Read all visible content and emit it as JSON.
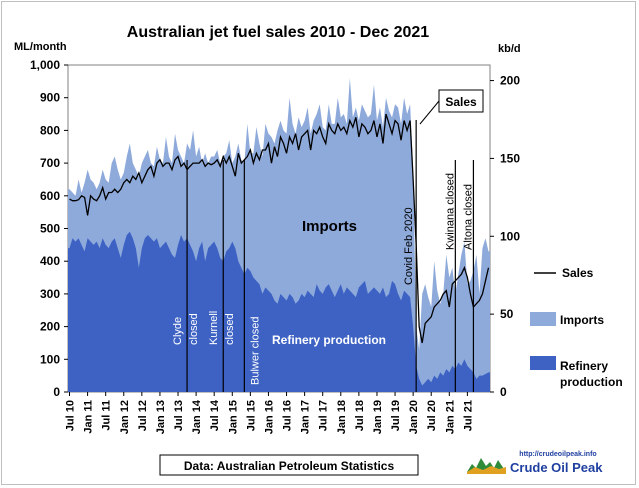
{
  "chart_data": {
    "type": "area",
    "title": "Australian jet fuel sales 2010 - Dec 2021",
    "ylabel_left": "ML/month",
    "ylabel_right": "kb/d",
    "ylim_left": [
      0,
      1000
    ],
    "ylim_right": [
      0,
      210
    ],
    "yticks_left": [
      "0",
      "100",
      "200",
      "300",
      "400",
      "500",
      "600",
      "700",
      "800",
      "900",
      "1,000"
    ],
    "yticks_right": [
      "0",
      "50",
      "100",
      "150",
      "200"
    ],
    "xticks": [
      "Jul 10",
      "Jan 11",
      "Jul 11",
      "Jan 12",
      "Jul 12",
      "Jan 13",
      "Jul 13",
      "Jan 14",
      "Jul 14",
      "Jan 15",
      "Jul 15",
      "Jan 16",
      "Jul 16",
      "Jan 17",
      "Jul 17",
      "Jan 18",
      "Jul 18",
      "Jan 19",
      "Jul 19",
      "Jan 20",
      "Jul 20",
      "Jan 21",
      "Jul 21"
    ],
    "x_start": "2010-07",
    "series": [
      {
        "name": "Sales",
        "type": "line",
        "color": "#000000",
        "values": [
          590,
          585,
          585,
          588,
          600,
          595,
          540,
          600,
          590,
          585,
          600,
          625,
          590,
          610,
          610,
          620,
          610,
          620,
          640,
          650,
          640,
          660,
          650,
          670,
          640,
          660,
          680,
          690,
          660,
          700,
          710,
          690,
          700,
          700,
          680,
          710,
          720,
          690,
          700,
          680,
          690,
          700,
          700,
          700,
          710,
          690,
          700,
          695,
          700,
          710,
          690,
          720,
          700,
          720,
          690,
          660,
          730,
          700,
          710,
          720,
          740,
          700,
          730,
          710,
          740,
          740,
          760,
          700,
          750,
          720,
          780,
          760,
          730,
          780,
          760,
          790,
          740,
          780,
          790,
          800,
          740,
          800,
          790,
          810,
          780,
          760,
          820,
          800,
          790,
          820,
          800,
          810,
          790,
          830,
          810,
          840,
          780,
          820,
          810,
          790,
          800,
          830,
          780,
          820,
          760,
          850,
          820,
          790,
          830,
          820,
          770,
          830,
          800,
          830,
          650,
          450,
          200,
          150,
          210,
          220,
          230,
          260,
          270,
          280,
          300,
          310,
          260,
          330,
          340,
          350,
          360,
          380,
          350,
          300,
          260,
          270,
          280,
          300,
          340,
          380
        ]
      },
      {
        "name": "Imports",
        "type": "area",
        "color": "#8eaadb",
        "values": [
          620,
          610,
          600,
          650,
          610,
          640,
          680,
          650,
          640,
          620,
          640,
          680,
          650,
          640,
          700,
          720,
          680,
          650,
          670,
          720,
          760,
          700,
          680,
          660,
          700,
          720,
          740,
          700,
          690,
          750,
          710,
          700,
          780,
          720,
          700,
          790,
          740,
          720,
          700,
          760,
          740,
          800,
          720,
          750,
          700,
          730,
          700,
          720,
          720,
          740,
          700,
          720,
          730,
          770,
          700,
          720,
          760,
          710,
          700,
          820,
          730,
          730,
          810,
          760,
          720,
          820,
          790,
          780,
          760,
          800,
          830,
          800,
          790,
          900,
          820,
          790,
          840,
          810,
          830,
          870,
          790,
          830,
          850,
          880,
          810,
          800,
          880,
          820,
          820,
          900,
          840,
          850,
          820,
          960,
          840,
          870,
          830,
          880,
          860,
          840,
          850,
          940,
          830,
          870,
          810,
          900,
          860,
          840,
          880,
          870,
          820,
          900,
          850,
          880,
          680,
          200,
          130,
          300,
          330,
          290,
          260,
          400,
          310,
          270,
          300,
          420,
          350,
          380,
          300,
          360,
          420,
          460,
          330,
          340,
          370,
          420,
          300,
          440,
          470,
          430
        ]
      },
      {
        "name": "Refinery production",
        "type": "area",
        "color": "#3d62c4",
        "values": [
          440,
          470,
          460,
          470,
          450,
          430,
          470,
          460,
          450,
          460,
          440,
          470,
          450,
          440,
          460,
          470,
          440,
          410,
          450,
          480,
          490,
          470,
          440,
          380,
          440,
          470,
          480,
          470,
          460,
          470,
          440,
          450,
          460,
          440,
          420,
          410,
          450,
          480,
          460,
          470,
          450,
          430,
          400,
          440,
          460,
          400,
          440,
          450,
          460,
          440,
          410,
          400,
          430,
          440,
          460,
          440,
          400,
          380,
          360,
          380,
          370,
          350,
          340,
          330,
          300,
          320,
          310,
          300,
          280,
          270,
          300,
          290,
          280,
          300,
          290,
          270,
          280,
          300,
          290,
          310,
          300,
          290,
          330,
          310,
          300,
          320,
          330,
          310,
          290,
          310,
          330,
          300,
          320,
          310,
          300,
          290,
          320,
          330,
          340,
          300,
          310,
          320,
          310,
          300,
          320,
          290,
          300,
          340,
          330,
          300,
          280,
          310,
          300,
          290,
          200,
          80,
          40,
          20,
          30,
          40,
          30,
          50,
          40,
          60,
          50,
          70,
          60,
          80,
          70,
          90,
          80,
          100,
          80,
          70,
          60,
          40,
          50,
          50,
          55,
          60
        ]
      }
    ],
    "annotations": [
      {
        "text": "Clyde closed",
        "date": "2013-10"
      },
      {
        "text": "Kurnell closed",
        "date": "2014-10"
      },
      {
        "text": "Bulwer closed",
        "date": "2015-05"
      },
      {
        "text": "Covid Feb 2020",
        "date": "2020-02"
      },
      {
        "text": "Kwinana closed",
        "date": "2021-03"
      },
      {
        "text": "Altona closed",
        "date": "2021-09"
      }
    ],
    "labels": {
      "sales_callout": "Sales",
      "imports_label": "Imports",
      "refinery_label": "Refinery production"
    },
    "legend_position": "right",
    "legend": [
      {
        "name": "Sales",
        "color": "#000000"
      },
      {
        "name": "Imports",
        "color": "#8eaadb"
      },
      {
        "name": "Refinery",
        "name2": "production",
        "color": "#3d62c4"
      }
    ],
    "source": "Data: Australian Petroleum Statistics",
    "logo": {
      "url": "http://crudeoilpeak.info",
      "name": "Crude Oil Peak"
    }
  }
}
